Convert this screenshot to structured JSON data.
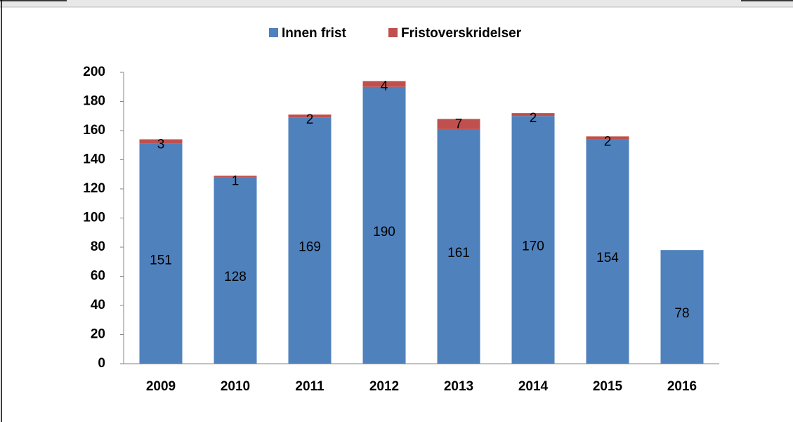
{
  "chart_data": {
    "type": "stacked_bar",
    "categories": [
      "2009",
      "2010",
      "2011",
      "2012",
      "2013",
      "2014",
      "2015",
      "2016"
    ],
    "series": [
      {
        "name": "Innen frist",
        "color": "#4f81bd",
        "values": [
          151,
          128,
          169,
          190,
          161,
          170,
          154,
          78
        ]
      },
      {
        "name": "Fristoverskridelser",
        "color": "#c0504d",
        "values": [
          3,
          1,
          2,
          4,
          7,
          2,
          2,
          null
        ]
      }
    ],
    "ylim": [
      0,
      200
    ],
    "yticks": [
      0,
      20,
      40,
      60,
      80,
      100,
      120,
      140,
      160,
      180,
      200
    ],
    "legend": "top"
  }
}
